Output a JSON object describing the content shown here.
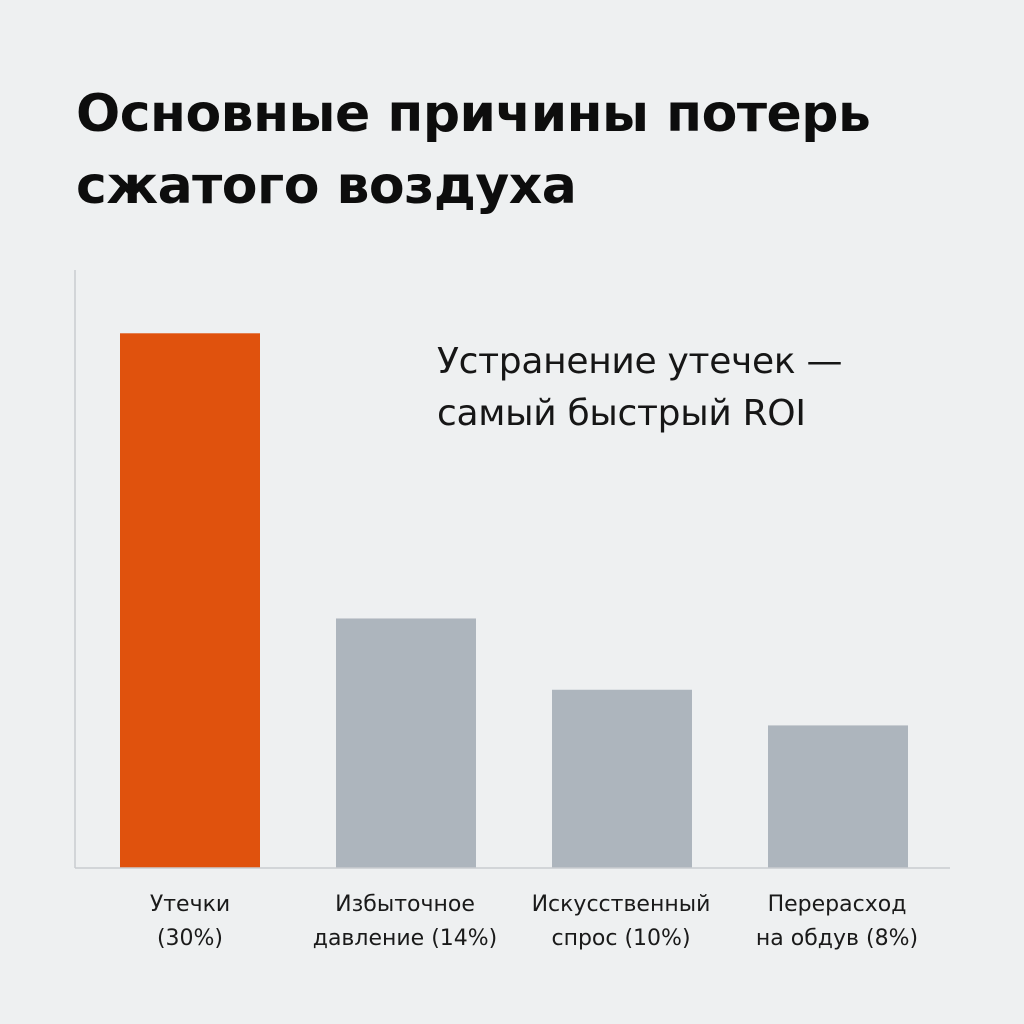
{
  "chart_data": {
    "type": "bar",
    "title_lines": [
      "Основные причины потерь",
      "сжатого воздуха"
    ],
    "annotation_lines": [
      "Устранение утечек —",
      "самый быстрый ROI"
    ],
    "categories": [
      [
        "Утечки",
        "(30%)"
      ],
      [
        "Избыточное",
        "давление (14%)"
      ],
      [
        "Искусственный",
        "спрос (10%)"
      ],
      [
        "Перерасход",
        "на обдув (8%)"
      ]
    ],
    "values": [
      30,
      14,
      10,
      8
    ],
    "unit": "%",
    "ylim": [
      0,
      34
    ],
    "grid": false,
    "legend": "none",
    "colors": {
      "highlight": "#e0520d",
      "default": "#adb5bd",
      "axis": "#c9ccd0",
      "background": "#eef0f1"
    },
    "highlight_index": 0
  }
}
